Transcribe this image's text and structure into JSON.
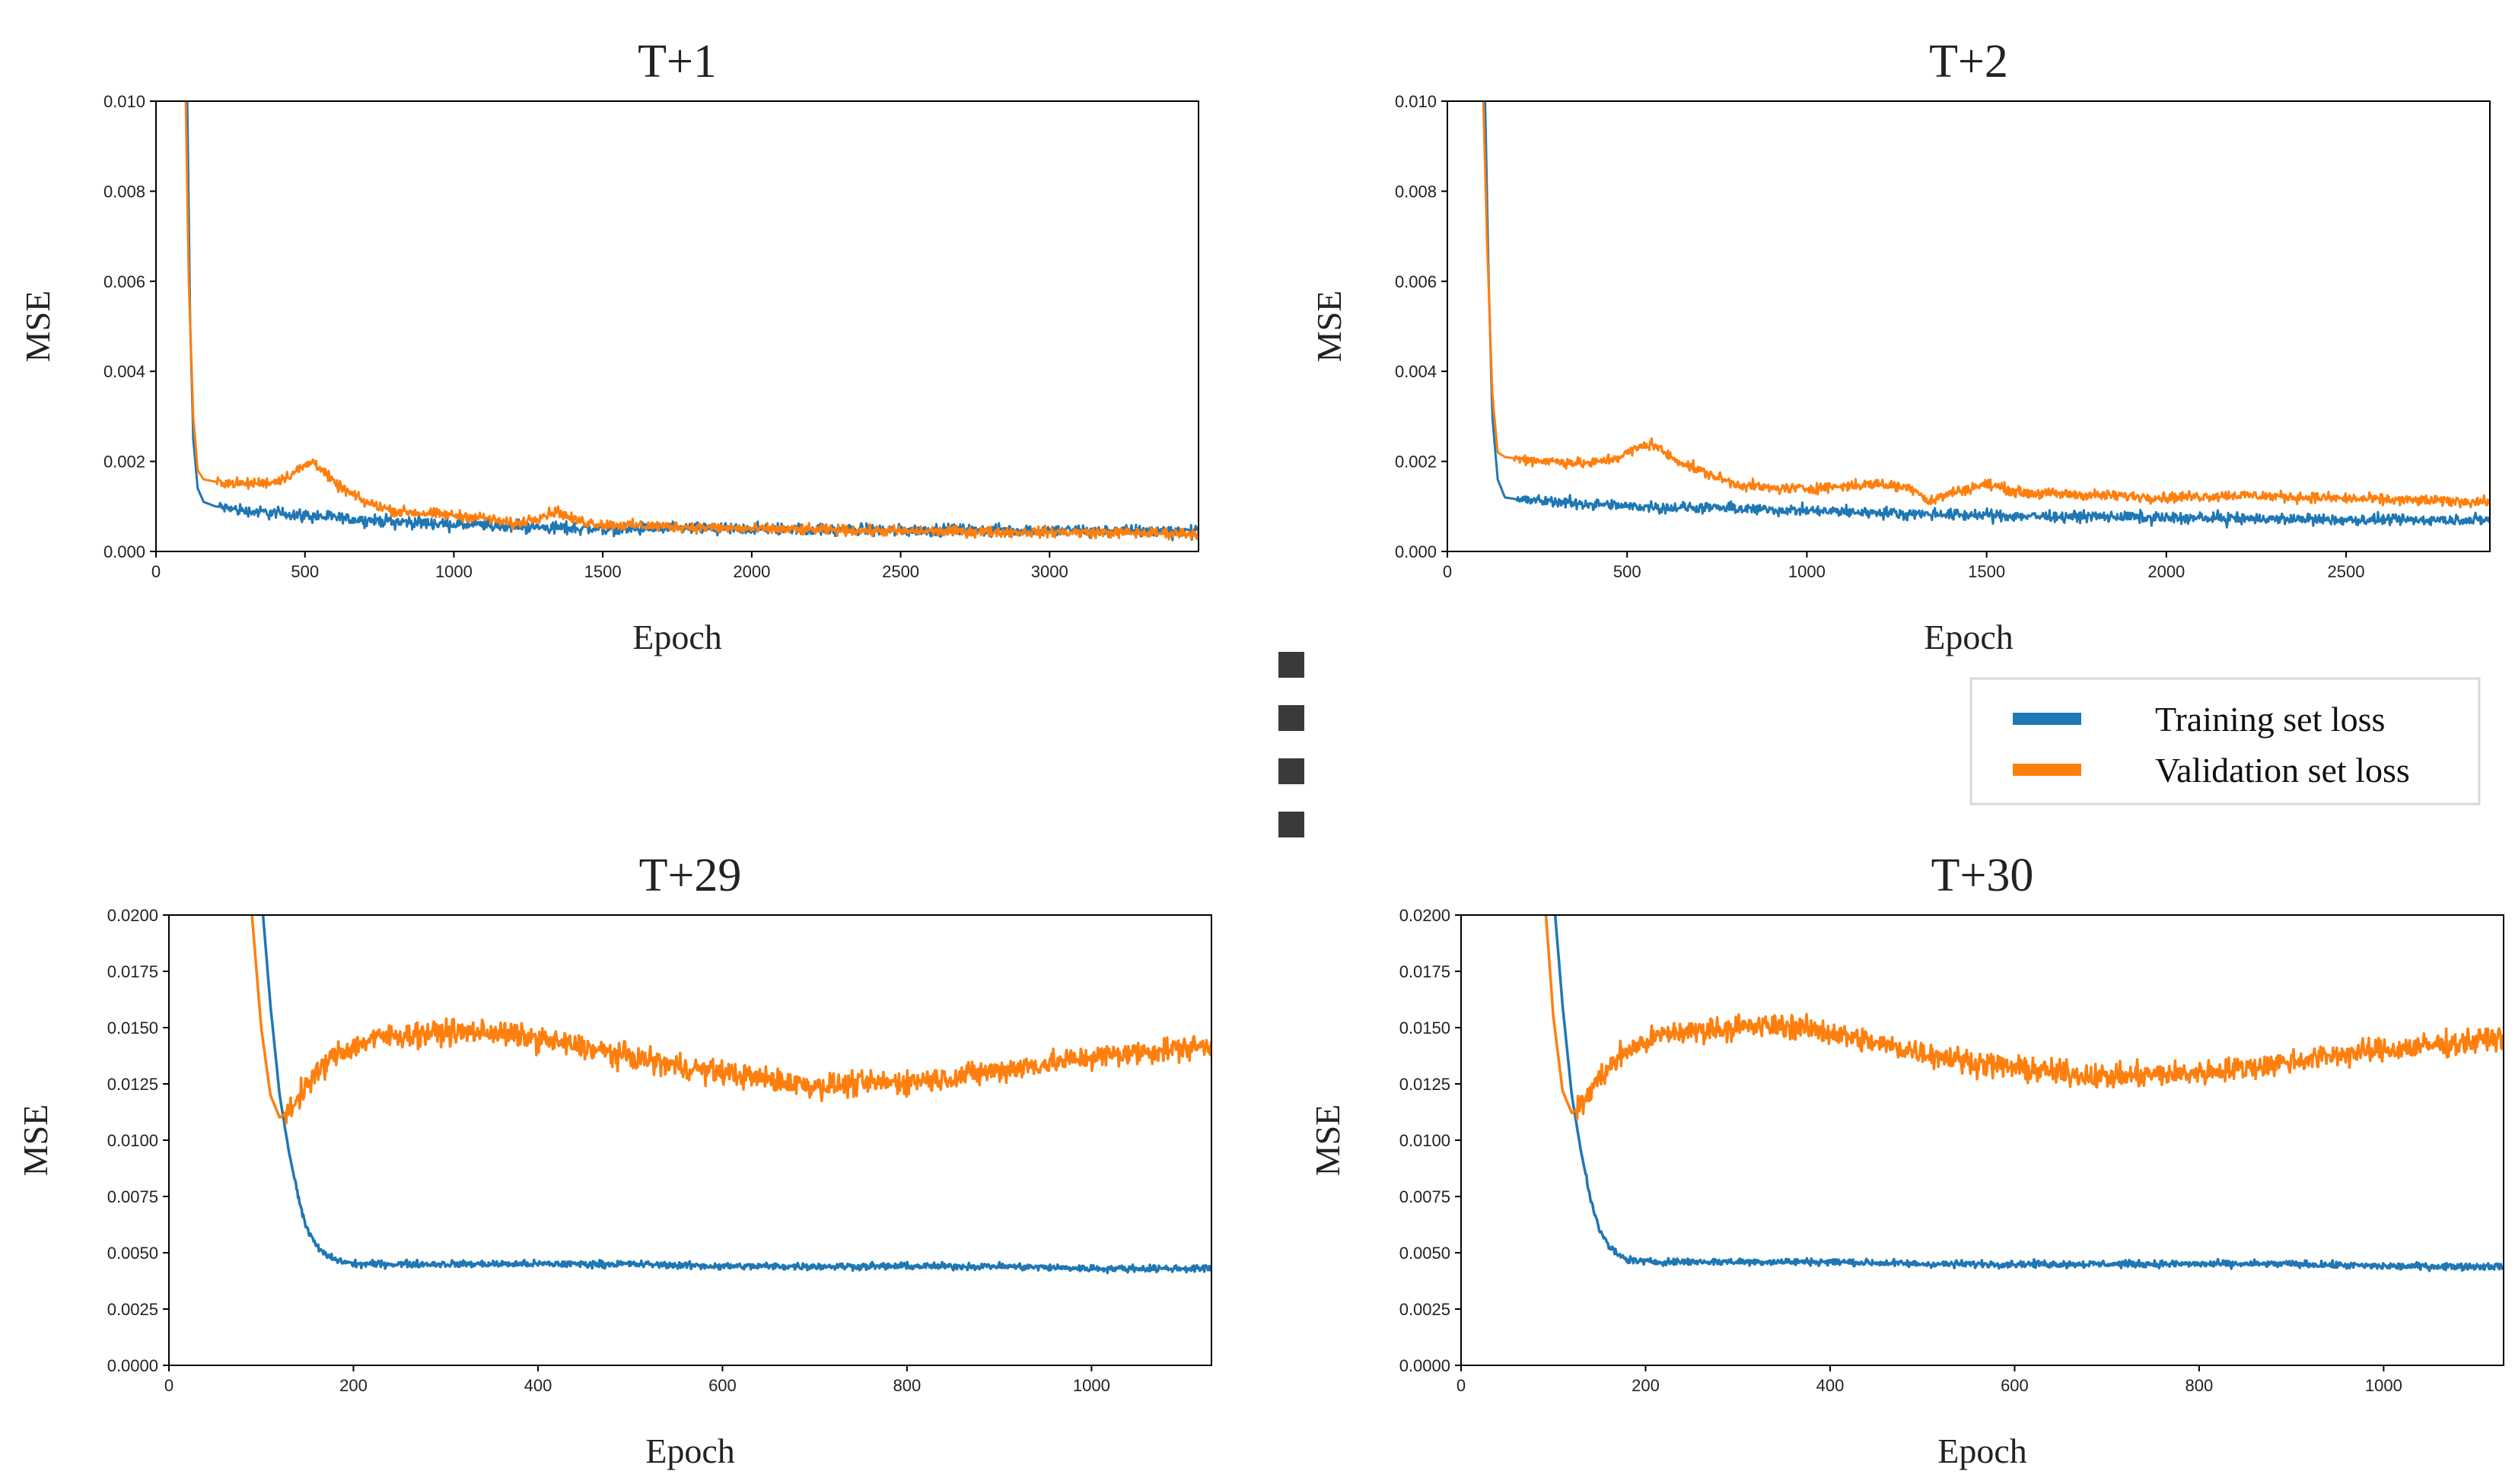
{
  "colors": {
    "training": "#1f77b4",
    "validation": "#ff7f0e",
    "axis": "#000000",
    "background": "#ffffff",
    "ellipsis": "#3a3a3a"
  },
  "legend": {
    "training_label": "Training  set loss",
    "validation_label": "Validation  set loss",
    "placement": "right, between top and bottom rows"
  },
  "ellipsis": {
    "count": 4,
    "meaning": "vertical dots indicating omitted horizons T+3 … T+28"
  },
  "chart_data": [
    {
      "type": "line",
      "title": "T+1",
      "xlabel": "Epoch",
      "ylabel": "MSE",
      "xlim": [
        0,
        3500
      ],
      "ylim": [
        0,
        0.01
      ],
      "xticks": [
        0,
        500,
        1000,
        1500,
        2000,
        2500,
        3000
      ],
      "xtick_labels": [
        "0",
        "500",
        "1000",
        "1500",
        "2000",
        "2500",
        "3000"
      ],
      "yticks": [
        0,
        0.002,
        0.004,
        0.006,
        0.008,
        0.01
      ],
      "ytick_labels": [
        "0.000",
        "0.002",
        "0.004",
        "0.006",
        "0.008",
        "0.010"
      ],
      "series": [
        {
          "name": "Training  set loss",
          "x": [
            105,
            115,
            125,
            140,
            160,
            200,
            300,
            500,
            700,
            1000,
            1200,
            1500,
            2000,
            2500,
            3000,
            3500
          ],
          "y": [
            0.01,
            0.005,
            0.0025,
            0.0014,
            0.0011,
            0.001,
            0.0009,
            0.0008,
            0.0007,
            0.0006,
            0.00055,
            0.0005,
            0.0005,
            0.00048,
            0.00047,
            0.00045
          ],
          "noise": 0.00014
        },
        {
          "name": "Validation  set loss",
          "x": [
            100,
            110,
            125,
            140,
            160,
            200,
            300,
            400,
            450,
            500,
            530,
            560,
            600,
            700,
            800,
            1000,
            1100,
            1200,
            1300,
            1350,
            1400,
            1500,
            2000,
            2500,
            3000,
            3500
          ],
          "y": [
            0.01,
            0.006,
            0.003,
            0.0018,
            0.0016,
            0.00155,
            0.0015,
            0.00155,
            0.0017,
            0.0019,
            0.002,
            0.0018,
            0.0015,
            0.0011,
            0.0009,
            0.0008,
            0.00075,
            0.0006,
            0.0008,
            0.0009,
            0.0007,
            0.0006,
            0.0005,
            0.00045,
            0.00043,
            0.0004
          ],
          "noise": 0.0001
        }
      ]
    },
    {
      "type": "line",
      "title": "T+2",
      "xlabel": "Epoch",
      "ylabel": "MSE",
      "xlim": [
        0,
        2900
      ],
      "ylim": [
        0,
        0.01
      ],
      "xticks": [
        0,
        500,
        1000,
        1500,
        2000,
        2500
      ],
      "xtick_labels": [
        "0",
        "500",
        "1000",
        "1500",
        "2000",
        "2500"
      ],
      "yticks": [
        0,
        0.002,
        0.004,
        0.006,
        0.008,
        0.01
      ],
      "ytick_labels": [
        "0.000",
        "0.002",
        "0.004",
        "0.006",
        "0.008",
        "0.010"
      ],
      "series": [
        {
          "name": "Training  set loss",
          "x": [
            105,
            115,
            125,
            140,
            160,
            200,
            300,
            500,
            800,
            1000,
            1500,
            2000,
            2500,
            2900
          ],
          "y": [
            0.01,
            0.006,
            0.003,
            0.0016,
            0.0012,
            0.00115,
            0.0011,
            0.001,
            0.00095,
            0.0009,
            0.0008,
            0.00075,
            0.0007,
            0.0007
          ],
          "noise": 0.00013
        },
        {
          "name": "Validation  set loss",
          "x": [
            100,
            110,
            125,
            140,
            160,
            200,
            300,
            400,
            480,
            530,
            570,
            620,
            700,
            800,
            900,
            1000,
            1100,
            1200,
            1300,
            1340,
            1400,
            1500,
            1600,
            1800,
            2000,
            2200,
            2400,
            2600,
            2900
          ],
          "y": [
            0.01,
            0.007,
            0.0035,
            0.0022,
            0.0021,
            0.00205,
            0.002,
            0.00195,
            0.0021,
            0.0023,
            0.0024,
            0.0021,
            0.0018,
            0.0015,
            0.0014,
            0.0014,
            0.00145,
            0.0015,
            0.0014,
            0.0011,
            0.0013,
            0.0015,
            0.0013,
            0.00125,
            0.0012,
            0.00125,
            0.0012,
            0.00115,
            0.0011
          ],
          "noise": 0.0001
        }
      ]
    },
    {
      "type": "line",
      "title": "T+29",
      "xlabel": "Epoch",
      "ylabel": "MSE",
      "xlim": [
        0,
        1130
      ],
      "ylim": [
        0,
        0.02
      ],
      "xticks": [
        0,
        200,
        400,
        600,
        800,
        1000
      ],
      "xtick_labels": [
        "0",
        "200",
        "400",
        "600",
        "800",
        "1000"
      ],
      "yticks": [
        0,
        0.0025,
        0.005,
        0.0075,
        0.01,
        0.0125,
        0.015,
        0.0175,
        0.02
      ],
      "ytick_labels": [
        "0.0000",
        "0.0025",
        "0.0050",
        "0.0075",
        "0.0100",
        "0.0125",
        "0.0150",
        "0.0175",
        "0.0200"
      ],
      "series": [
        {
          "name": "Training  set loss",
          "x": [
            102,
            110,
            120,
            130,
            140,
            150,
            160,
            170,
            180,
            200,
            250,
            300,
            400,
            500,
            600,
            700,
            800,
            900,
            1000,
            1130
          ],
          "y": [
            0.02,
            0.016,
            0.012,
            0.0095,
            0.0075,
            0.006,
            0.0053,
            0.0049,
            0.0047,
            0.0045,
            0.0045,
            0.0045,
            0.0045,
            0.0045,
            0.0044,
            0.0044,
            0.0044,
            0.0044,
            0.0043,
            0.0043
          ],
          "noise": 0.00013
        },
        {
          "name": "Validation  set loss",
          "x": [
            90,
            100,
            110,
            120,
            130,
            150,
            180,
            220,
            260,
            300,
            350,
            400,
            450,
            500,
            550,
            600,
            650,
            700,
            750,
            800,
            850,
            900,
            950,
            1000,
            1050,
            1100,
            1130
          ],
          "y": [
            0.02,
            0.015,
            0.012,
            0.011,
            0.0113,
            0.0125,
            0.0138,
            0.0145,
            0.0147,
            0.0148,
            0.0148,
            0.0145,
            0.0141,
            0.0137,
            0.0133,
            0.013,
            0.0127,
            0.0124,
            0.0125,
            0.0126,
            0.0128,
            0.0131,
            0.0134,
            0.0137,
            0.0139,
            0.0141,
            0.0142
          ],
          "noise": 0.00045
        }
      ]
    },
    {
      "type": "line",
      "title": "T+30",
      "xlabel": "Epoch",
      "ylabel": "MSE",
      "xlim": [
        0,
        1130
      ],
      "ylim": [
        0,
        0.02
      ],
      "xticks": [
        0,
        200,
        400,
        600,
        800,
        1000
      ],
      "xtick_labels": [
        "0",
        "200",
        "400",
        "600",
        "800",
        "1000"
      ],
      "yticks": [
        0,
        0.0025,
        0.005,
        0.0075,
        0.01,
        0.0125,
        0.015,
        0.0175,
        0.02
      ],
      "ytick_labels": [
        "0.0000",
        "0.0025",
        "0.0050",
        "0.0075",
        "0.0100",
        "0.0125",
        "0.0150",
        "0.0175",
        "0.0200"
      ],
      "series": [
        {
          "name": "Training  set loss",
          "x": [
            102,
            110,
            120,
            130,
            140,
            150,
            160,
            170,
            180,
            200,
            250,
            300,
            400,
            500,
            600,
            700,
            800,
            900,
            1000,
            1130
          ],
          "y": [
            0.02,
            0.016,
            0.012,
            0.0095,
            0.0075,
            0.006,
            0.0053,
            0.0049,
            0.0047,
            0.0046,
            0.0046,
            0.0046,
            0.0046,
            0.0045,
            0.0045,
            0.0045,
            0.0045,
            0.0045,
            0.0044,
            0.0044
          ],
          "noise": 0.00013
        },
        {
          "name": "Validation  set loss",
          "x": [
            92,
            100,
            110,
            120,
            130,
            150,
            180,
            220,
            260,
            300,
            350,
            400,
            450,
            500,
            550,
            600,
            650,
            700,
            750,
            800,
            850,
            900,
            950,
            1000,
            1050,
            1100,
            1130
          ],
          "y": [
            0.02,
            0.0155,
            0.0122,
            0.0112,
            0.0115,
            0.0128,
            0.014,
            0.0147,
            0.0149,
            0.015,
            0.0151,
            0.0148,
            0.0143,
            0.0139,
            0.0135,
            0.0132,
            0.013,
            0.0128,
            0.0129,
            0.013,
            0.0132,
            0.0135,
            0.0138,
            0.014,
            0.0142,
            0.0144,
            0.0146
          ],
          "noise": 0.00045
        }
      ]
    }
  ]
}
